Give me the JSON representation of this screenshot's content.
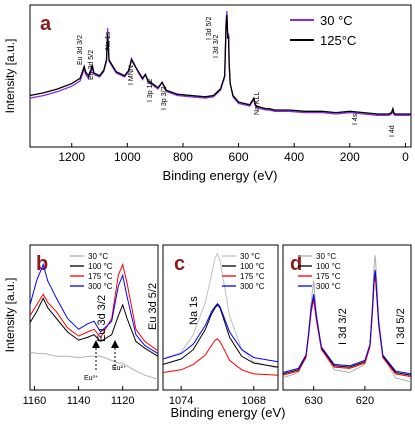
{
  "chart_data": [
    {
      "panel": "a",
      "type": "line",
      "xlabel": "Binding energy (eV)",
      "ylabel": "Intensity [a.u.]",
      "xlim": [
        1350,
        -20
      ],
      "xticks": [
        1200,
        1000,
        800,
        600,
        400,
        200,
        0
      ],
      "grid": false,
      "legend": "top-right",
      "series": [
        {
          "name": "30 °C",
          "color": "#8a2be2",
          "x": [
            1350,
            1300,
            1250,
            1200,
            1170,
            1155,
            1150,
            1140,
            1130,
            1126,
            1120,
            1100,
            1085,
            1075,
            1071,
            1066,
            1040,
            1010,
            995,
            985,
            975,
            960,
            945,
            935,
            925,
            910,
            890,
            875,
            860,
            820,
            770,
            720,
            690,
            665,
            650,
            645,
            642,
            639,
            636,
            634,
            630,
            620,
            600,
            560,
            545,
            540,
            535,
            520,
            500,
            490,
            470,
            420,
            360,
            300,
            250,
            200,
            150,
            100,
            80,
            60,
            50,
            45,
            42,
            38,
            30,
            10,
            -20
          ],
          "y": [
            0.34,
            0.36,
            0.39,
            0.43,
            0.47,
            0.56,
            0.52,
            0.49,
            0.54,
            0.57,
            0.52,
            0.5,
            0.54,
            0.62,
            0.87,
            0.62,
            0.53,
            0.5,
            0.54,
            0.64,
            0.6,
            0.53,
            0.48,
            0.52,
            0.46,
            0.44,
            0.41,
            0.46,
            0.39,
            0.36,
            0.35,
            0.34,
            0.35,
            0.4,
            0.5,
            0.92,
            1.0,
            0.8,
            0.83,
            0.62,
            0.45,
            0.35,
            0.3,
            0.28,
            0.33,
            0.28,
            0.27,
            0.26,
            0.25,
            0.25,
            0.24,
            0.24,
            0.23,
            0.23,
            0.22,
            0.23,
            0.22,
            0.21,
            0.21,
            0.21,
            0.22,
            0.24,
            0.22,
            0.21,
            0.21,
            0.21,
            0.21
          ]
        },
        {
          "name": "125°C",
          "color": "#000000",
          "x": [
            1350,
            1300,
            1250,
            1200,
            1170,
            1155,
            1150,
            1140,
            1130,
            1126,
            1120,
            1100,
            1085,
            1075,
            1071,
            1066,
            1040,
            1010,
            995,
            985,
            975,
            960,
            945,
            935,
            925,
            910,
            890,
            875,
            860,
            820,
            770,
            720,
            690,
            665,
            650,
            645,
            642,
            639,
            636,
            634,
            630,
            620,
            600,
            560,
            545,
            540,
            535,
            520,
            500,
            490,
            470,
            420,
            360,
            300,
            250,
            200,
            150,
            100,
            80,
            60,
            50,
            45,
            42,
            38,
            30,
            10,
            -20
          ],
          "y": [
            0.36,
            0.38,
            0.41,
            0.45,
            0.49,
            0.58,
            0.54,
            0.51,
            0.56,
            0.59,
            0.53,
            0.51,
            0.55,
            0.63,
            0.82,
            0.63,
            0.54,
            0.51,
            0.55,
            0.63,
            0.59,
            0.54,
            0.49,
            0.52,
            0.47,
            0.45,
            0.42,
            0.46,
            0.4,
            0.37,
            0.36,
            0.35,
            0.36,
            0.41,
            0.51,
            0.9,
            0.97,
            0.79,
            0.81,
            0.61,
            0.45,
            0.36,
            0.31,
            0.29,
            0.34,
            0.29,
            0.28,
            0.27,
            0.26,
            0.26,
            0.25,
            0.25,
            0.24,
            0.24,
            0.23,
            0.24,
            0.23,
            0.22,
            0.22,
            0.22,
            0.23,
            0.26,
            0.23,
            0.22,
            0.22,
            0.22,
            0.22
          ]
        }
      ],
      "annotations": [
        "Eu 3d 3/2",
        "Eu 3d 5/2",
        "Na 1s",
        "I MNN",
        "I 3p 1/2",
        "I 3p 3/2",
        "I 3d 3/2",
        "I 3d 5/2",
        "Na KLL",
        "I 4s",
        "I 4d"
      ]
    },
    {
      "panel": "b",
      "type": "line",
      "ylabel": "Intensity [a.u.]",
      "xlim": [
        1162,
        1104
      ],
      "xticks": [
        1160,
        1140,
        1120
      ],
      "legend": "top-center",
      "series": [
        {
          "name": "30 °C",
          "color": "#b0b0b0",
          "x": [
            1162,
            1158,
            1155,
            1150,
            1145,
            1140,
            1135,
            1130,
            1125,
            1122,
            1120,
            1118,
            1115,
            1110,
            1104
          ],
          "y": [
            0.25,
            0.24,
            0.24,
            0.22,
            0.22,
            0.21,
            0.22,
            0.22,
            0.19,
            0.17,
            0.17,
            0.15,
            0.12,
            0.08,
            0.05
          ]
        },
        {
          "name": "100 °C",
          "color": "#000000",
          "x": [
            1162,
            1159,
            1156,
            1154,
            1150,
            1145,
            1140,
            1136,
            1133,
            1130,
            1125,
            1122,
            1120,
            1118,
            1114,
            1110,
            1104
          ],
          "y": [
            0.47,
            0.55,
            0.65,
            0.58,
            0.5,
            0.4,
            0.34,
            0.36,
            0.38,
            0.33,
            0.38,
            0.52,
            0.6,
            0.5,
            0.33,
            0.28,
            0.22
          ]
        },
        {
          "name": "175 °C",
          "color": "#ff0000",
          "x": [
            1162,
            1159,
            1156,
            1154,
            1150,
            1145,
            1140,
            1136,
            1133,
            1130,
            1125,
            1122,
            1120,
            1118,
            1114,
            1110,
            1104
          ],
          "y": [
            0.52,
            0.6,
            0.68,
            0.62,
            0.55,
            0.43,
            0.37,
            0.4,
            0.42,
            0.36,
            0.5,
            0.82,
            0.9,
            0.76,
            0.42,
            0.33,
            0.26
          ]
        },
        {
          "name": "300 °C",
          "color": "#0000ff",
          "x": [
            1162,
            1159,
            1156,
            1154,
            1150,
            1145,
            1140,
            1136,
            1133,
            1130,
            1125,
            1122,
            1120,
            1118,
            1114,
            1110,
            1104
          ],
          "y": [
            0.6,
            0.78,
            0.9,
            0.78,
            0.65,
            0.5,
            0.42,
            0.46,
            0.48,
            0.4,
            0.48,
            0.74,
            0.82,
            0.66,
            0.38,
            0.3,
            0.24
          ]
        }
      ],
      "annotations": [
        "Eu 3d 3/2",
        "Eu 3d 5/2",
        "Eu³⁺",
        "Eu²⁺"
      ]
    },
    {
      "panel": "c",
      "type": "line",
      "xlabel": "Binding energy (eV)",
      "xlim": [
        1075.5,
        1066
      ],
      "xticks": [
        1074,
        1068
      ],
      "legend": "top-right",
      "series": [
        {
          "name": "30 °C",
          "color": "#c0c0c0",
          "x": [
            1075.5,
            1074,
            1073,
            1072,
            1071.5,
            1071.2,
            1071,
            1070.8,
            1070.5,
            1070,
            1069,
            1068,
            1066
          ],
          "y": [
            0.2,
            0.25,
            0.38,
            0.62,
            0.82,
            0.95,
            0.98,
            0.93,
            0.78,
            0.52,
            0.27,
            0.18,
            0.13
          ]
        },
        {
          "name": "100 °C",
          "color": "#000000",
          "x": [
            1075.5,
            1074,
            1073,
            1072,
            1071.5,
            1071.2,
            1071,
            1070.8,
            1070.5,
            1070,
            1069,
            1068,
            1066
          ],
          "y": [
            0.16,
            0.2,
            0.27,
            0.42,
            0.53,
            0.58,
            0.6,
            0.58,
            0.5,
            0.36,
            0.22,
            0.17,
            0.14
          ]
        },
        {
          "name": "175 °C",
          "color": "#ff0000",
          "x": [
            1075.5,
            1074,
            1073,
            1072,
            1071.5,
            1071.2,
            1071,
            1070.8,
            1070.5,
            1070,
            1069,
            1068,
            1066
          ],
          "y": [
            0.1,
            0.12,
            0.16,
            0.23,
            0.3,
            0.34,
            0.35,
            0.33,
            0.28,
            0.19,
            0.12,
            0.09,
            0.08
          ]
        },
        {
          "name": "300 °C",
          "color": "#0000ff",
          "x": [
            1075.5,
            1074,
            1073,
            1072,
            1071.5,
            1071.2,
            1071,
            1070.8,
            1070.5,
            1070,
            1069,
            1068,
            1066
          ],
          "y": [
            0.2,
            0.24,
            0.31,
            0.45,
            0.55,
            0.59,
            0.61,
            0.59,
            0.52,
            0.4,
            0.27,
            0.21,
            0.18
          ]
        }
      ],
      "annotations": [
        "Na 1s"
      ]
    },
    {
      "panel": "d",
      "type": "line",
      "xlim": [
        636,
        611
      ],
      "xticks": [
        630,
        620
      ],
      "legend": "top-left",
      "series": [
        {
          "name": "30 °C",
          "color": "#b0b0b0",
          "x": [
            636,
            633,
            631.5,
            631,
            630.5,
            630,
            629.5,
            628.5,
            626,
            623,
            620,
            619,
            618.5,
            618.2,
            618,
            617.8,
            617.3,
            616.5,
            614,
            611
          ],
          "y": [
            0.06,
            0.1,
            0.22,
            0.4,
            0.62,
            0.78,
            0.55,
            0.28,
            0.12,
            0.1,
            0.16,
            0.3,
            0.62,
            0.9,
            0.97,
            0.85,
            0.5,
            0.22,
            0.06,
            0.03
          ]
        },
        {
          "name": "100 °C",
          "color": "#000000",
          "x": [
            636,
            633,
            631.5,
            631,
            630.5,
            630,
            629.5,
            628.5,
            626,
            623,
            620,
            619,
            618.5,
            618.2,
            618,
            617.8,
            617.3,
            616.5,
            614,
            611
          ],
          "y": [
            0.09,
            0.12,
            0.22,
            0.38,
            0.56,
            0.66,
            0.5,
            0.28,
            0.15,
            0.14,
            0.18,
            0.3,
            0.58,
            0.78,
            0.84,
            0.74,
            0.46,
            0.22,
            0.1,
            0.08
          ]
        },
        {
          "name": "175 °C",
          "color": "#ff0000",
          "x": [
            636,
            633,
            631.5,
            631,
            630.5,
            630,
            629.5,
            628.5,
            626,
            623,
            620,
            619,
            618.5,
            618.2,
            618,
            617.8,
            617.3,
            616.5,
            614,
            611
          ],
          "y": [
            0.08,
            0.11,
            0.21,
            0.37,
            0.55,
            0.64,
            0.49,
            0.27,
            0.14,
            0.13,
            0.17,
            0.29,
            0.56,
            0.76,
            0.82,
            0.72,
            0.45,
            0.21,
            0.09,
            0.07
          ]
        },
        {
          "name": "300 °C",
          "color": "#0000ff",
          "x": [
            636,
            633,
            631.5,
            631,
            630.5,
            630,
            629.5,
            628.5,
            626,
            623,
            620,
            619,
            618.5,
            618.2,
            618,
            617.8,
            617.3,
            616.5,
            614,
            611
          ],
          "y": [
            0.1,
            0.13,
            0.23,
            0.39,
            0.58,
            0.68,
            0.52,
            0.29,
            0.16,
            0.15,
            0.19,
            0.31,
            0.6,
            0.8,
            0.86,
            0.76,
            0.47,
            0.23,
            0.11,
            0.09
          ]
        }
      ],
      "annotations": [
        "I 3d 3/2",
        "I 3d 5/2"
      ]
    }
  ],
  "panel_letters": {
    "a": "a",
    "b": "b",
    "c": "c",
    "d": "d"
  },
  "colors": {
    "letter": "#8b1a1a"
  }
}
